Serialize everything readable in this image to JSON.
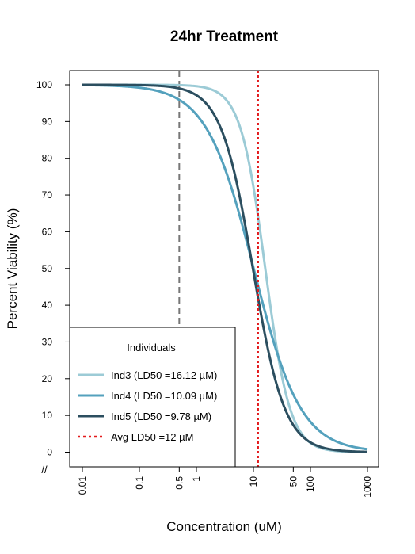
{
  "chart_data": {
    "type": "line",
    "title": "24hr Treatment",
    "xlabel": "Concentration (uM)",
    "ylabel": "Percent Viability (%)",
    "x_scale": "log10",
    "xlim": [
      0.01,
      1000
    ],
    "ylim": [
      0,
      100
    ],
    "x_ticks": [
      {
        "value": 0.01,
        "label": "0.01"
      },
      {
        "value": 0.1,
        "label": "0.1"
      },
      {
        "value": 0.5,
        "label": "0.5"
      },
      {
        "value": 1,
        "label": "1"
      },
      {
        "value": 10,
        "label": "10"
      },
      {
        "value": 50,
        "label": "50"
      },
      {
        "value": 100,
        "label": "100"
      },
      {
        "value": 1000,
        "label": "1000"
      }
    ],
    "y_ticks": [
      0,
      10,
      20,
      30,
      40,
      50,
      60,
      70,
      80,
      90,
      100
    ],
    "axis_break_mark": "//",
    "grid": false,
    "legend": {
      "title": "Individuals",
      "position": "bottom-left"
    },
    "series": [
      {
        "name": "Ind3 (LD50 =16.12 µM)",
        "color": "#9ccbd6",
        "style": "solid",
        "ld50": 16.12,
        "hill": 2.0,
        "x": [
          0.01,
          0.1,
          0.5,
          1,
          5,
          10,
          16.12,
          50,
          100,
          1000
        ],
        "y": [
          100,
          100,
          99.9,
          99.6,
          91,
          72,
          50,
          9,
          2.5,
          0
        ]
      },
      {
        "name": "Ind4 (LD50 =10.09 µM)",
        "color": "#54a1bd",
        "style": "solid",
        "ld50": 10.09,
        "hill": 1.05,
        "x": [
          0.01,
          0.1,
          0.5,
          1,
          5,
          10,
          50,
          100,
          1000
        ],
        "y": [
          99.9,
          99,
          95.8,
          92,
          68,
          50,
          16,
          9,
          1
        ]
      },
      {
        "name": "Ind5 (LD50 =9.78 µM)",
        "color": "#2b4e5f",
        "style": "solid",
        "ld50": 9.78,
        "hill": 1.55,
        "x": [
          0.01,
          0.1,
          0.5,
          1,
          5,
          9.78,
          50,
          100,
          1000
        ],
        "y": [
          100,
          100,
          99,
          97,
          74,
          50,
          7,
          2.5,
          0
        ]
      },
      {
        "name": "Avg LD50 =12 µM",
        "color": "#e31a1c",
        "style": "dotted",
        "vertical_at": 12
      }
    ],
    "reference_lines": [
      {
        "x": 0.5,
        "color": "#777777",
        "style": "dashed"
      }
    ]
  }
}
